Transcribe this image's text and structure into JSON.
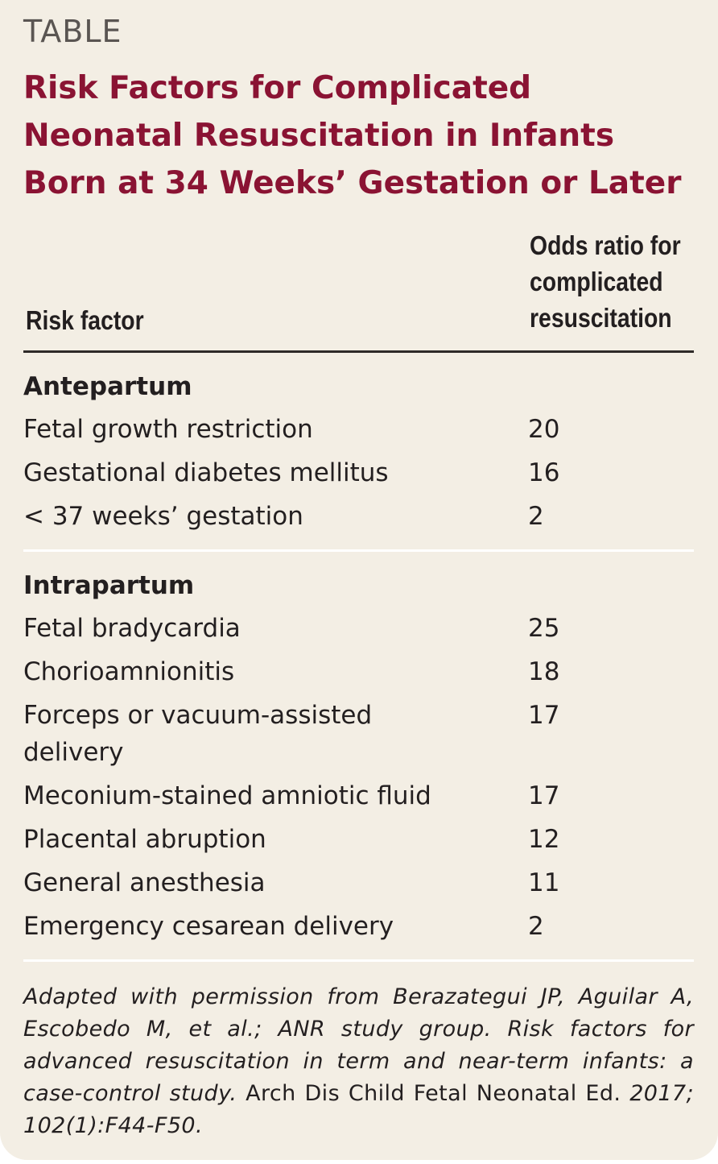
{
  "label": "TABLE",
  "title": "Risk Factors for Complicated Neonatal Resuscitation in Infants Born at 34 Weeks’ Gestation or Later",
  "columns": {
    "risk_factor": "Risk factor",
    "odds_ratio": "Odds ratio for\ncomplicated\nresuscitation"
  },
  "groups": [
    {
      "title": "Antepartum",
      "rows": [
        {
          "factor": "Fetal growth restriction",
          "odds": "20"
        },
        {
          "factor": "Gestational diabetes mellitus",
          "odds": "16"
        },
        {
          "factor": "< 37 weeks’ gestation",
          "odds": "2"
        }
      ]
    },
    {
      "title": "Intrapartum",
      "rows": [
        {
          "factor": "Fetal bradycardia",
          "odds": "25"
        },
        {
          "factor": "Chorioamnionitis",
          "odds": "18"
        },
        {
          "factor": "Forceps or vacuum-assisted delivery",
          "odds": "17"
        },
        {
          "factor": "Meconium-stained amniotic fluid",
          "odds": "17"
        },
        {
          "factor": "Placental abruption",
          "odds": "12"
        },
        {
          "factor": "General anesthesia",
          "odds": "11"
        },
        {
          "factor": "Emergency cesarean delivery",
          "odds": "2"
        }
      ]
    }
  ],
  "footnote": {
    "part1": "Adapted with permission from Berazategui JP, Aguilar A, Escobedo M, et al.; ANR study group. Risk factors for advanced resuscitation in term and near-term infants: a case-control study.",
    "part2": " Arch Dis Child Fetal Neonatal Ed. ",
    "part3": "2017; 102(1):F44-F50."
  },
  "colors": {
    "title": "#8a1333",
    "background": "#f3eee4",
    "label": "#5a5552"
  }
}
